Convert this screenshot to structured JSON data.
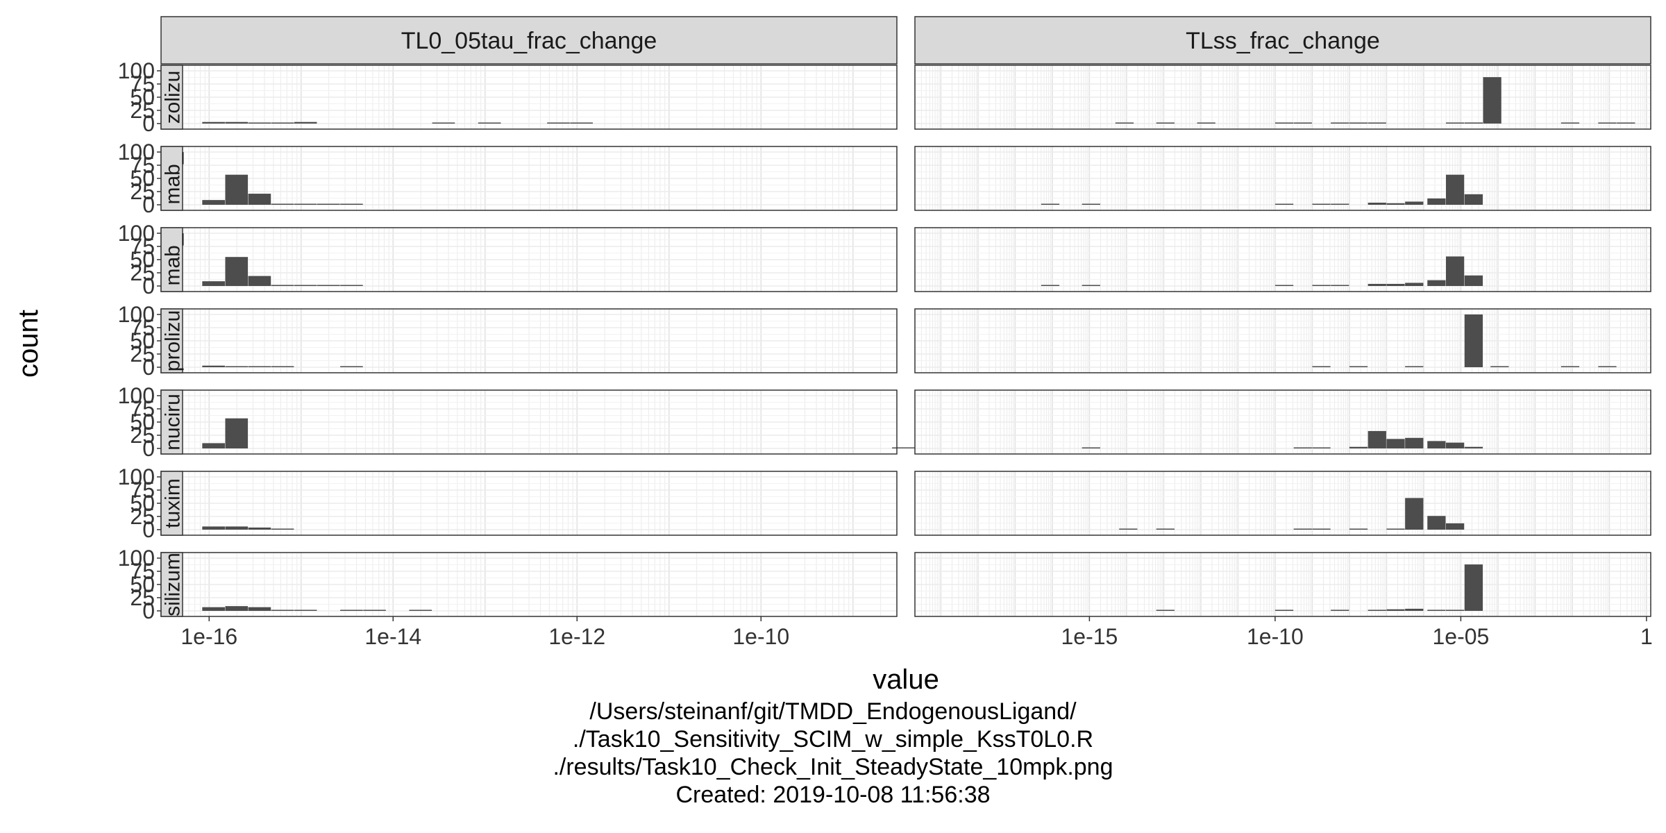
{
  "chart_data": {
    "type": "bar",
    "xlabel": "value",
    "ylabel": "count",
    "x_scale": "log10",
    "y_ticks": [
      0,
      25,
      50,
      75,
      100
    ],
    "ylim": [
      0,
      100
    ],
    "grid": true,
    "columns": [
      {
        "name": "TL0_05tau_frac_change",
        "xlim": [
          3e-17,
          3e-09
        ],
        "tick_values": [
          1e-16,
          1e-14,
          1e-12,
          1e-10
        ],
        "tick_labels": [
          "1e-16",
          "1e-14",
          "1e-12",
          "1e-10"
        ]
      },
      {
        "name": "TLss_frac_change",
        "xlim": [
          2e-20,
          1.3
        ],
        "tick_values": [
          1e-15,
          1e-10,
          1e-05,
          1
        ],
        "tick_labels": [
          "1e-15",
          "1e-10",
          "1e-05",
          "1"
        ]
      }
    ],
    "rows": [
      "zolizu",
      "mab_",
      "mab_",
      "prolizu",
      "nuciru",
      "tuxim",
      "silizum"
    ],
    "panels": [
      [
        [
          [
            -15.95,
            3
          ],
          [
            -15.7,
            3
          ],
          [
            -15.45,
            1
          ],
          [
            -15.2,
            0.5
          ],
          [
            -14.95,
            3
          ],
          [
            -13.45,
            0.5
          ],
          [
            -12.95,
            0.5
          ],
          [
            -12.2,
            0.5
          ],
          [
            -11.95,
            0.5
          ]
        ],
        [
          [
            -15.95,
            9
          ],
          [
            -15.7,
            57
          ],
          [
            -15.45,
            21
          ],
          [
            -15.2,
            2
          ],
          [
            -14.95,
            1
          ],
          [
            -14.7,
            0.5
          ],
          [
            -14.45,
            0.5
          ]
        ],
        [
          [
            -15.95,
            9
          ],
          [
            -15.7,
            55
          ],
          [
            -15.45,
            19
          ],
          [
            -15.2,
            2
          ],
          [
            -14.95,
            1
          ],
          [
            -14.7,
            0.5
          ],
          [
            -14.45,
            0.5
          ]
        ],
        [
          [
            -15.95,
            3
          ],
          [
            -15.7,
            1
          ],
          [
            -15.45,
            1
          ],
          [
            -15.2,
            0.5
          ],
          [
            -14.45,
            1
          ]
        ],
        [
          [
            -15.95,
            10
          ],
          [
            -15.7,
            57
          ],
          [
            -8.45,
            1
          ]
        ],
        [
          [
            -15.95,
            6
          ],
          [
            -15.7,
            6
          ],
          [
            -15.45,
            4
          ],
          [
            -15.2,
            1
          ]
        ],
        [
          [
            -15.95,
            7
          ],
          [
            -15.7,
            9
          ],
          [
            -15.45,
            7
          ],
          [
            -15.2,
            1
          ],
          [
            -14.95,
            0.5
          ],
          [
            -14.45,
            0.5
          ],
          [
            -14.2,
            0.5
          ],
          [
            -13.7,
            0.5
          ]
        ]
      ],
      [
        [
          [
            -14.05,
            0.5
          ],
          [
            -12.95,
            0.5
          ],
          [
            -11.85,
            1
          ],
          [
            -9.75,
            1
          ],
          [
            -9.25,
            0.5
          ],
          [
            -8.25,
            1
          ],
          [
            -7.75,
            1
          ],
          [
            -7.25,
            0.5
          ],
          [
            -5.15,
            0.5
          ],
          [
            -4.65,
            2
          ],
          [
            -4.15,
            88
          ],
          [
            -2.05,
            0.5
          ],
          [
            -1.05,
            0.5
          ],
          [
            -0.55,
            0.5
          ]
        ],
        [
          [
            -16.05,
            1
          ],
          [
            -14.95,
            1
          ],
          [
            -9.75,
            1
          ],
          [
            -8.75,
            0.5
          ],
          [
            -8.25,
            0.5
          ],
          [
            -7.25,
            4
          ],
          [
            -6.75,
            3
          ],
          [
            -6.25,
            6
          ],
          [
            -5.65,
            12
          ],
          [
            -5.15,
            57
          ],
          [
            -4.65,
            20
          ]
        ],
        [
          [
            -16.05,
            1
          ],
          [
            -14.95,
            1
          ],
          [
            -9.75,
            1
          ],
          [
            -8.75,
            0.5
          ],
          [
            -8.25,
            0.5
          ],
          [
            -7.25,
            4
          ],
          [
            -6.75,
            4
          ],
          [
            -6.25,
            6
          ],
          [
            -5.65,
            11
          ],
          [
            -5.15,
            56
          ],
          [
            -4.65,
            20
          ]
        ],
        [
          [
            -8.75,
            1
          ],
          [
            -7.75,
            1
          ],
          [
            -6.25,
            1
          ],
          [
            -4.65,
            100
          ],
          [
            -3.95,
            0.5
          ],
          [
            -2.05,
            0.5
          ],
          [
            -1.05,
            0.5
          ]
        ],
        [
          [
            -14.95,
            1
          ],
          [
            -9.25,
            1
          ],
          [
            -8.75,
            1
          ],
          [
            -7.75,
            3
          ],
          [
            -7.25,
            33
          ],
          [
            -6.75,
            18
          ],
          [
            -6.25,
            20
          ],
          [
            -5.65,
            14
          ],
          [
            -5.15,
            11
          ],
          [
            -4.65,
            3
          ]
        ],
        [
          [
            -13.95,
            1
          ],
          [
            -12.95,
            1
          ],
          [
            -9.25,
            0.5
          ],
          [
            -8.75,
            1
          ],
          [
            -7.75,
            1
          ],
          [
            -6.75,
            1
          ],
          [
            -6.25,
            60
          ],
          [
            -5.65,
            26
          ],
          [
            -5.15,
            12
          ]
        ],
        [
          [
            -12.95,
            1
          ],
          [
            -9.75,
            2
          ],
          [
            -8.25,
            2
          ],
          [
            -7.25,
            2
          ],
          [
            -6.75,
            3
          ],
          [
            -6.25,
            4
          ],
          [
            -5.65,
            2
          ],
          [
            -5.15,
            2
          ],
          [
            -4.65,
            88
          ]
        ]
      ]
    ]
  },
  "caption": {
    "line1": "/Users/steinanf/git/TMDD_EndogenousLigand/",
    "line2": "./Task10_Sensitivity_SCIM_w_simple_KssT0L0.R",
    "line3": "./results/Task10_Check_Init_SteadyState_10mpk.png",
    "line4": "Created: 2019-10-08 11:56:38"
  },
  "colors": {
    "bar": "#4d4d4d",
    "strip_fill": "#d9d9d9",
    "grid": "#ebebeb",
    "border": "#333333"
  }
}
